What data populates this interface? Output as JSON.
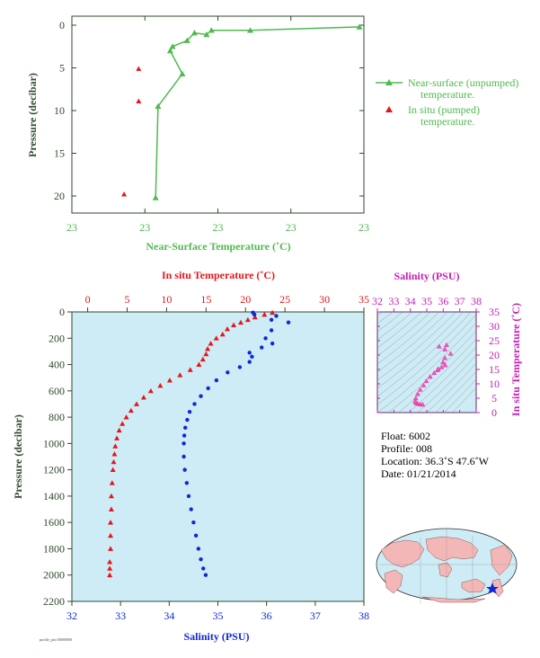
{
  "colors": {
    "green": "#4fba4f",
    "green_dark": "#2e6b3a",
    "red": "#e8141b",
    "blue": "#1029d6",
    "magenta": "#c81eb4",
    "pink": "#ff55aa",
    "plot_bg": "#cdecf5",
    "axis": "#2e4a2e"
  },
  "chart_data": [
    {
      "type": "line",
      "xlabel": "Near-Surface Temperature (˚C)",
      "ylabel": "Pressure (decibar)",
      "xticks": [
        "23",
        "23",
        "23",
        "23",
        "23"
      ],
      "yticks": [
        "0",
        "5",
        "10",
        "15",
        "20"
      ],
      "ylim": [
        0,
        22
      ],
      "legend_position": "right",
      "series": [
        {
          "name": "Near-surface (unpumped) temperature.",
          "style": "line+triangle",
          "points": [
            {
              "x": 1.0,
              "y": 0.2
            },
            {
              "x": 0.55,
              "y": 0.6
            },
            {
              "x": 0.39,
              "y": 0.6
            },
            {
              "x": 0.37,
              "y": 1.1
            },
            {
              "x": 0.32,
              "y": 0.9
            },
            {
              "x": 0.29,
              "y": 1.8
            },
            {
              "x": 0.23,
              "y": 2.5
            },
            {
              "x": 0.22,
              "y": 3.0
            },
            {
              "x": 0.27,
              "y": 5.7
            },
            {
              "x": 0.17,
              "y": 9.5
            },
            {
              "x": 0.16,
              "y": 20.2
            }
          ]
        },
        {
          "name": "In situ (pumped) temperature.",
          "style": "triangle",
          "points": [
            {
              "x": 0.09,
              "y": 5.1
            },
            {
              "x": 0.09,
              "y": 8.9
            },
            {
              "x": 0.03,
              "y": 19.8
            }
          ]
        }
      ]
    },
    {
      "type": "scatter",
      "top_xlabel": "In situ Temperature (˚C)",
      "bottom_xlabel": "Salinity (PSU)",
      "ylabel": "Pressure (decibar)",
      "temp_xlim": [
        -2,
        35
      ],
      "temp_xticks": [
        "0",
        "5",
        "10",
        "15",
        "20",
        "25",
        "30",
        "35"
      ],
      "sal_xlim": [
        32,
        38
      ],
      "sal_xticks": [
        "32",
        "33",
        "34",
        "35",
        "36",
        "37",
        "38"
      ],
      "ylim": [
        0,
        2200
      ],
      "yticks": [
        "0",
        "200",
        "400",
        "600",
        "800",
        "1000",
        "1200",
        "1400",
        "1600",
        "1800",
        "2000",
        "2200"
      ],
      "temperature": [
        [
          23.4,
          5
        ],
        [
          22.4,
          20
        ],
        [
          21.2,
          40
        ],
        [
          20.3,
          60
        ],
        [
          19.4,
          80
        ],
        [
          18.5,
          100
        ],
        [
          17.7,
          130
        ],
        [
          17.1,
          170
        ],
        [
          16.3,
          200
        ],
        [
          15.6,
          240
        ],
        [
          15.2,
          280
        ],
        [
          15.0,
          320
        ],
        [
          14.6,
          360
        ],
        [
          14.1,
          400
        ],
        [
          13.0,
          440
        ],
        [
          11.7,
          480
        ],
        [
          10.4,
          520
        ],
        [
          9.2,
          560
        ],
        [
          8.0,
          600
        ],
        [
          7.1,
          650
        ],
        [
          6.2,
          700
        ],
        [
          5.5,
          750
        ],
        [
          4.9,
          800
        ],
        [
          4.4,
          850
        ],
        [
          4.0,
          900
        ],
        [
          3.7,
          960
        ],
        [
          3.5,
          1020
        ],
        [
          3.4,
          1080
        ],
        [
          3.3,
          1140
        ],
        [
          3.2,
          1200
        ],
        [
          3.1,
          1300
        ],
        [
          3.0,
          1400
        ],
        [
          3.0,
          1500
        ],
        [
          2.9,
          1600
        ],
        [
          2.9,
          1700
        ],
        [
          2.9,
          1800
        ],
        [
          2.8,
          1900
        ],
        [
          2.8,
          1950
        ],
        [
          2.8,
          2000
        ]
      ],
      "salinity": [
        [
          35.72,
          5
        ],
        [
          35.75,
          20
        ],
        [
          36.2,
          30
        ],
        [
          36.1,
          60
        ],
        [
          36.45,
          80
        ],
        [
          36.1,
          140
        ],
        [
          35.98,
          200
        ],
        [
          36.12,
          240
        ],
        [
          35.9,
          270
        ],
        [
          35.65,
          310
        ],
        [
          35.7,
          340
        ],
        [
          35.65,
          380
        ],
        [
          35.45,
          420
        ],
        [
          35.2,
          460
        ],
        [
          34.97,
          520
        ],
        [
          34.8,
          580
        ],
        [
          34.65,
          640
        ],
        [
          34.52,
          700
        ],
        [
          34.42,
          760
        ],
        [
          34.37,
          820
        ],
        [
          34.33,
          880
        ],
        [
          34.31,
          940
        ],
        [
          34.3,
          1000
        ],
        [
          34.3,
          1100
        ],
        [
          34.32,
          1200
        ],
        [
          34.36,
          1300
        ],
        [
          34.4,
          1400
        ],
        [
          34.45,
          1500
        ],
        [
          34.5,
          1600
        ],
        [
          34.55,
          1700
        ],
        [
          34.6,
          1800
        ],
        [
          34.65,
          1880
        ],
        [
          34.7,
          1950
        ],
        [
          34.75,
          2000
        ]
      ]
    },
    {
      "type": "scatter",
      "title": "Salinity (PSU)",
      "ylabel": "In situ Temperature (˚C)",
      "xlim": [
        32,
        38
      ],
      "xticks": [
        "32",
        "33",
        "34",
        "35",
        "36",
        "37",
        "38"
      ],
      "ylim": [
        0,
        35
      ],
      "yticks": [
        "0",
        "5",
        "10",
        "15",
        "20",
        "25",
        "30",
        "35"
      ],
      "points": [
        [
          34.75,
          2.8
        ],
        [
          34.6,
          2.9
        ],
        [
          34.45,
          3.1
        ],
        [
          34.33,
          3.4
        ],
        [
          34.3,
          4.0
        ],
        [
          34.33,
          5.0
        ],
        [
          34.45,
          6.5
        ],
        [
          34.6,
          8.0
        ],
        [
          34.8,
          9.5
        ],
        [
          34.97,
          11.0
        ],
        [
          35.2,
          12.5
        ],
        [
          35.45,
          13.8
        ],
        [
          35.65,
          14.8
        ],
        [
          35.7,
          15.2
        ],
        [
          35.9,
          15.8
        ],
        [
          36.12,
          16.5
        ],
        [
          35.98,
          17.5
        ],
        [
          36.1,
          19.0
        ],
        [
          36.45,
          20.5
        ],
        [
          36.1,
          22.0
        ],
        [
          36.2,
          23.5
        ],
        [
          35.75,
          23.0
        ]
      ]
    }
  ],
  "float_info": {
    "float": "Float:  6002",
    "profile": "Profile:  008",
    "location": "Location:  36.3˚S  47.6˚W",
    "date": "Date:  01/21/2014"
  },
  "footer_note": "profile_plot 00000000"
}
